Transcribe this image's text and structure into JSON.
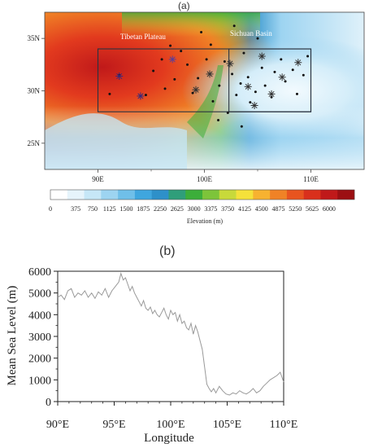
{
  "chart_data": [
    {
      "panel": "(a)",
      "type": "heatmap",
      "title": "(a)",
      "x_ticks": [
        "90E",
        "100E",
        "110E"
      ],
      "y_ticks": [
        "35N",
        "30N",
        "25N"
      ],
      "xlim": [
        85,
        115
      ],
      "ylim": [
        22.5,
        37.5
      ],
      "annotations": [
        "Tibetan Plateau",
        "Sichuan Basin"
      ],
      "colorbar": {
        "label": "Elevation (m)",
        "ticks": [
          "0",
          "375",
          "750",
          "1125",
          "1500",
          "1875",
          "2250",
          "2625",
          "3000",
          "3375",
          "3750",
          "4125",
          "4500",
          "4875",
          "5250",
          "5625",
          "6000"
        ],
        "colors": [
          "#ffffff",
          "#e6f4fb",
          "#c6e7f7",
          "#9dd4f1",
          "#6fbfe9",
          "#3fa6de",
          "#2e90c9",
          "#2f9e7a",
          "#3cae3a",
          "#7dc43a",
          "#c8d93a",
          "#f5e13a",
          "#f7b230",
          "#f08226",
          "#e8541f",
          "#d9301c",
          "#c0191a",
          "#9c0f12"
        ]
      },
      "domains": [
        {
          "lon": [
            90,
            110
          ],
          "lat": [
            28,
            34
          ]
        },
        {
          "lon": [
            102.3,
            110
          ],
          "lat": [
            28,
            34
          ]
        }
      ],
      "stations": [
        {
          "lon": 91.1,
          "lat": 29.7
        },
        {
          "lon": 92.0,
          "lat": 31.5
        },
        {
          "lon": 94.5,
          "lat": 29.6
        },
        {
          "lon": 95.2,
          "lat": 31.9
        },
        {
          "lon": 96.0,
          "lat": 33.0
        },
        {
          "lon": 96.3,
          "lat": 30.2
        },
        {
          "lon": 97.2,
          "lat": 31.1
        },
        {
          "lon": 97.8,
          "lat": 33.8
        },
        {
          "lon": 98.4,
          "lat": 32.5
        },
        {
          "lon": 98.9,
          "lat": 29.8
        },
        {
          "lon": 99.4,
          "lat": 31.2
        },
        {
          "lon": 100.2,
          "lat": 33.0
        },
        {
          "lon": 100.6,
          "lat": 34.4
        },
        {
          "lon": 100.8,
          "lat": 29.0
        },
        {
          "lon": 101.4,
          "lat": 30.5
        },
        {
          "lon": 101.9,
          "lat": 32.8
        },
        {
          "lon": 102.2,
          "lat": 27.9
        },
        {
          "lon": 102.6,
          "lat": 31.6
        },
        {
          "lon": 103.0,
          "lat": 29.6
        },
        {
          "lon": 103.4,
          "lat": 30.7
        },
        {
          "lon": 103.7,
          "lat": 33.6
        },
        {
          "lon": 104.1,
          "lat": 31.3
        },
        {
          "lon": 104.3,
          "lat": 28.9
        },
        {
          "lon": 104.8,
          "lat": 29.9
        },
        {
          "lon": 105.4,
          "lat": 32.2
        },
        {
          "lon": 105.7,
          "lat": 30.5
        },
        {
          "lon": 106.3,
          "lat": 29.4
        },
        {
          "lon": 106.6,
          "lat": 31.8
        },
        {
          "lon": 107.2,
          "lat": 33.0
        },
        {
          "lon": 107.6,
          "lat": 30.9
        },
        {
          "lon": 108.3,
          "lat": 32.0
        },
        {
          "lon": 108.7,
          "lat": 29.7
        },
        {
          "lon": 109.3,
          "lat": 31.5
        },
        {
          "lon": 109.7,
          "lat": 33.3
        },
        {
          "lon": 96.8,
          "lat": 34.3
        },
        {
          "lon": 99.7,
          "lat": 35.6
        },
        {
          "lon": 102.8,
          "lat": 36.2
        },
        {
          "lon": 101.3,
          "lat": 27.2
        },
        {
          "lon": 103.5,
          "lat": 26.6
        },
        {
          "lon": 105.0,
          "lat": 35.0
        }
      ],
      "markers": [
        {
          "lon": 92.0,
          "lat": 31.4,
          "color": "#3a2a7a"
        },
        {
          "lon": 94.0,
          "lat": 29.5,
          "color": "#3a2a7a"
        },
        {
          "lon": 97.0,
          "lat": 33.0,
          "color": "#5a3f9a"
        },
        {
          "lon": 99.2,
          "lat": 30.1,
          "color": "#333333"
        },
        {
          "lon": 100.5,
          "lat": 31.6,
          "color": "#333333"
        },
        {
          "lon": 102.4,
          "lat": 32.6,
          "color": "#333333"
        },
        {
          "lon": 104.1,
          "lat": 30.4,
          "color": "#333333"
        },
        {
          "lon": 104.7,
          "lat": 28.6,
          "color": "#333333"
        },
        {
          "lon": 106.3,
          "lat": 29.7,
          "color": "#333333"
        },
        {
          "lon": 107.3,
          "lat": 31.3,
          "color": "#333333"
        },
        {
          "lon": 108.8,
          "lat": 32.7,
          "color": "#333333"
        },
        {
          "lon": 105.4,
          "lat": 33.3,
          "color": "#333333"
        }
      ]
    },
    {
      "panel": "(b)",
      "type": "line",
      "title": "(b)",
      "xlabel": "Longitude",
      "ylabel": "Mean Sea Level (m)",
      "xlim": [
        90,
        110
      ],
      "ylim": [
        0,
        6000
      ],
      "x_ticks": [
        90,
        95,
        100,
        105,
        110
      ],
      "x_tick_labels": [
        "90°E",
        "95°E",
        "100°E",
        "105°E",
        "110°E"
      ],
      "y_ticks": [
        0,
        1000,
        2000,
        3000,
        4000,
        5000,
        6000
      ],
      "y_tick_labels": [
        "0",
        "1000",
        "2000",
        "3000",
        "4000",
        "5000",
        "6000"
      ],
      "color": "#999999",
      "x": [
        90.0,
        90.3,
        90.6,
        90.9,
        91.2,
        91.5,
        91.8,
        92.1,
        92.4,
        92.7,
        93.0,
        93.3,
        93.6,
        93.9,
        94.2,
        94.5,
        94.8,
        95.1,
        95.4,
        95.6,
        95.8,
        96.0,
        96.2,
        96.4,
        96.6,
        96.8,
        97.0,
        97.2,
        97.4,
        97.6,
        97.8,
        98.0,
        98.2,
        98.4,
        98.6,
        98.8,
        99.0,
        99.2,
        99.4,
        99.6,
        99.8,
        100.0,
        100.2,
        100.4,
        100.6,
        100.8,
        101.0,
        101.2,
        101.4,
        101.6,
        101.8,
        102.0,
        102.2,
        102.4,
        102.6,
        102.8,
        103.0,
        103.2,
        103.4,
        103.6,
        103.8,
        104.0,
        104.3,
        104.6,
        104.9,
        105.2,
        105.5,
        105.8,
        106.1,
        106.4,
        106.7,
        107.0,
        107.3,
        107.6,
        107.9,
        108.2,
        108.5,
        108.8,
        109.1,
        109.4,
        109.7,
        110.0
      ],
      "y": [
        4800,
        4900,
        4700,
        5100,
        5200,
        4800,
        5000,
        4900,
        5100,
        4800,
        5000,
        4750,
        5050,
        4900,
        5200,
        4800,
        5100,
        5300,
        5500,
        5900,
        5600,
        5700,
        5400,
        5100,
        5300,
        5000,
        4800,
        4600,
        4400,
        4650,
        4300,
        4200,
        4350,
        4050,
        4200,
        4000,
        3900,
        4100,
        4300,
        4000,
        3800,
        4200,
        4000,
        4100,
        3700,
        4000,
        3600,
        3700,
        3400,
        3300,
        3600,
        3100,
        3500,
        3200,
        2800,
        2400,
        1600,
        800,
        600,
        450,
        600,
        400,
        700,
        500,
        350,
        300,
        400,
        350,
        500,
        400,
        350,
        450,
        600,
        400,
        500,
        700,
        850,
        1000,
        1100,
        1200,
        1350,
        900
      ]
    }
  ]
}
